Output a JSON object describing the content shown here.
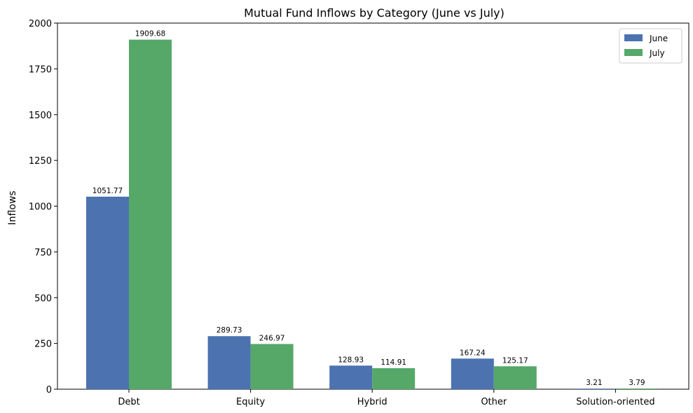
{
  "chart_data": {
    "type": "bar",
    "title": "Mutual Fund Inflows by Category (June vs July)",
    "xlabel": "",
    "ylabel": "Inflows",
    "categories": [
      "Debt",
      "Equity",
      "Hybrid",
      "Other",
      "Solution-oriented"
    ],
    "series": [
      {
        "name": "June",
        "color": "#4c72b0",
        "values": [
          1051.77,
          289.73,
          128.93,
          167.24,
          3.21
        ],
        "labels": [
          "1051.77",
          "289.73",
          "128.93",
          "167.24",
          "3.21"
        ]
      },
      {
        "name": "July",
        "color": "#55a868",
        "values": [
          1909.68,
          246.97,
          114.91,
          125.17,
          3.79
        ],
        "labels": [
          "1909.68",
          "246.97",
          "114.91",
          "125.17",
          "3.79"
        ]
      }
    ],
    "ylim": [
      0,
      2000
    ],
    "yticks": [
      0,
      250,
      500,
      750,
      1000,
      1250,
      1500,
      1750,
      2000
    ],
    "ytick_labels": [
      "0",
      "250",
      "500",
      "750",
      "1000",
      "1250",
      "1500",
      "1750",
      "2000"
    ],
    "grid": false,
    "legend_position": "top-right"
  }
}
